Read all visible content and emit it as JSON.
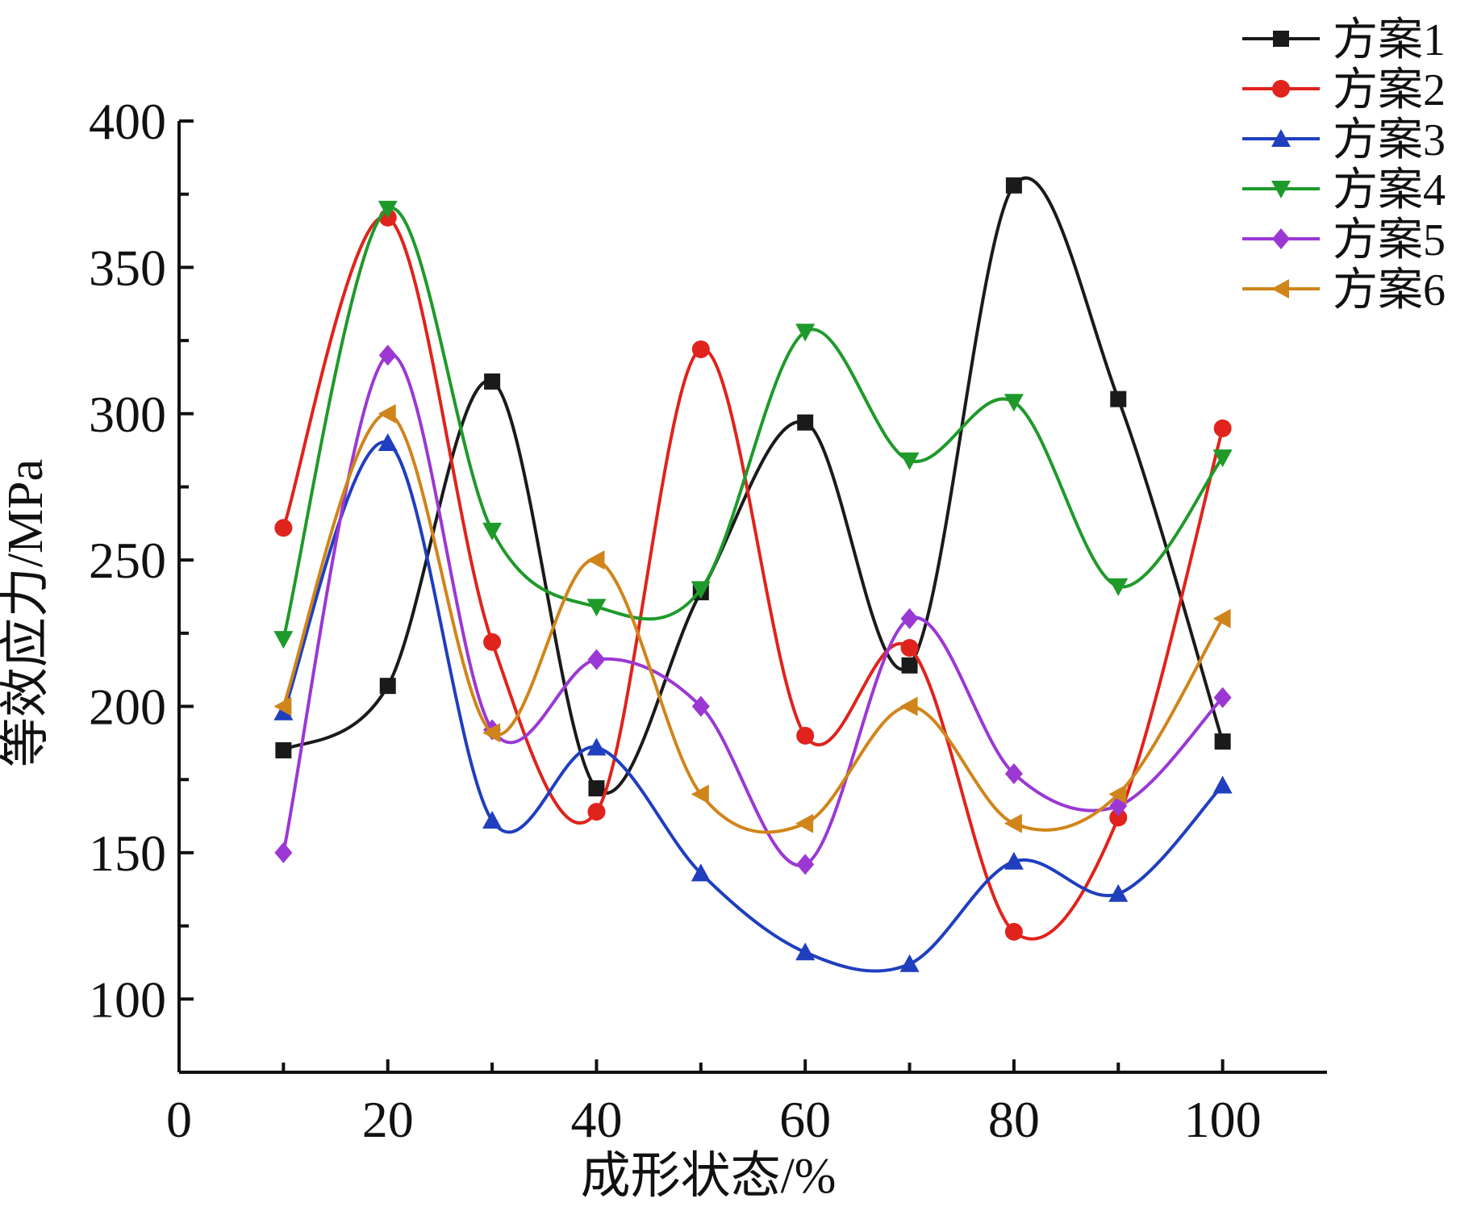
{
  "chart_data": {
    "type": "line",
    "xlabel": "成形状态/%",
    "ylabel": "等效应力/MPa",
    "xlim": [
      0,
      110
    ],
    "ylim": [
      75,
      400
    ],
    "xticks": [
      0,
      20,
      40,
      60,
      80,
      100
    ],
    "yticks": [
      100,
      150,
      200,
      250,
      300,
      350,
      400
    ],
    "legend_position": "top-right",
    "x": [
      10,
      20,
      30,
      40,
      50,
      60,
      70,
      80,
      90,
      100
    ],
    "series": [
      {
        "name": "方案1",
        "color": "#1a1a1a",
        "marker": "square",
        "values": [
          185,
          207,
          311,
          172,
          239,
          297,
          214,
          378,
          305,
          188
        ]
      },
      {
        "name": "方案2",
        "color": "#e0231c",
        "marker": "circle",
        "values": [
          261,
          367,
          222,
          164,
          322,
          190,
          220,
          123,
          162,
          295
        ]
      },
      {
        "name": "方案3",
        "color": "#1f3fbf",
        "marker": "triangle-up",
        "values": [
          198,
          290,
          161,
          186,
          143,
          116,
          112,
          147,
          136,
          173
        ]
      },
      {
        "name": "方案4",
        "color": "#1e9a2a",
        "marker": "triangle-down",
        "values": [
          223,
          370,
          260,
          234,
          240,
          328,
          284,
          304,
          241,
          285
        ]
      },
      {
        "name": "方案5",
        "color": "#9b38d4",
        "marker": "diamond",
        "values": [
          150,
          320,
          192,
          216,
          200,
          146,
          230,
          177,
          166,
          203
        ]
      },
      {
        "name": "方案6",
        "color": "#d0851a",
        "marker": "triangle-left",
        "values": [
          200,
          300,
          191,
          250,
          170,
          160,
          200,
          160,
          170,
          230
        ]
      }
    ]
  }
}
